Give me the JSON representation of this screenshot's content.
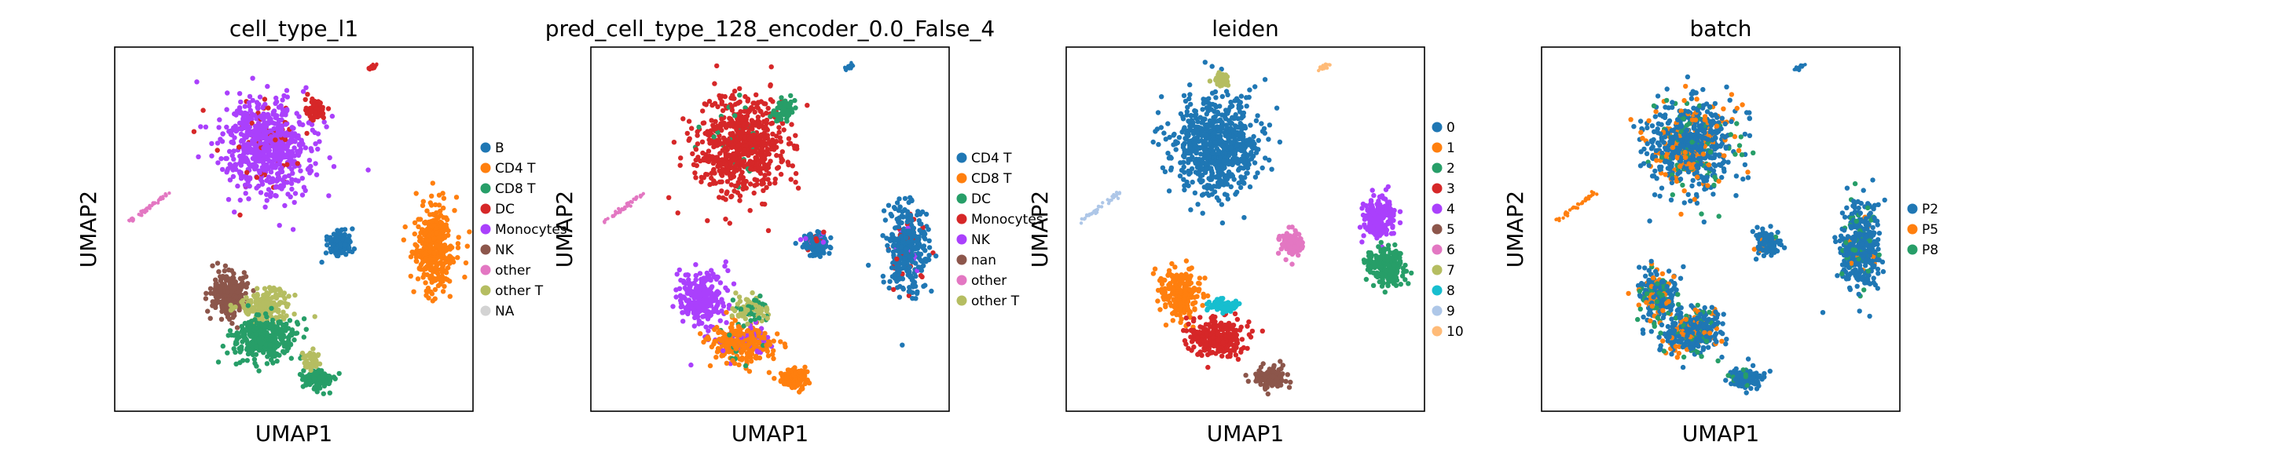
{
  "chart_data": [
    {
      "type": "scatter",
      "title": "cell_type_l1",
      "xlabel": "UMAP1",
      "ylabel": "UMAP2",
      "grid": false,
      "legend_position": "right",
      "legend": [
        {
          "label": "B",
          "color": "#1f77b4"
        },
        {
          "label": "CD4 T",
          "color": "#ff7f0e"
        },
        {
          "label": "CD8 T",
          "color": "#279e68"
        },
        {
          "label": "DC",
          "color": "#d62728"
        },
        {
          "label": "Monocytes",
          "color": "#aa40fc"
        },
        {
          "label": "NK",
          "color": "#8c564b"
        },
        {
          "label": "other",
          "color": "#e377c2"
        },
        {
          "label": "other T",
          "color": "#b5bd61"
        },
        {
          "label": "NA",
          "color": "#d3d3d3"
        }
      ],
      "clusters": [
        {
          "label": "Monocytes",
          "color": "#aa40fc",
          "x": 0.42,
          "y": 0.73,
          "sx": 0.11,
          "sy": 0.12,
          "n": 700,
          "mix": [
            [
              "#d62728",
              0.06
            ]
          ]
        },
        {
          "label": "DC",
          "color": "#d62728",
          "x": 0.56,
          "y": 0.83,
          "sx": 0.025,
          "sy": 0.025,
          "n": 60
        },
        {
          "label": "NK",
          "color": "#8c564b",
          "x": 0.32,
          "y": 0.32,
          "sx": 0.05,
          "sy": 0.06,
          "n": 220
        },
        {
          "label": "other T",
          "color": "#b5bd61",
          "x": 0.42,
          "y": 0.29,
          "sx": 0.07,
          "sy": 0.04,
          "n": 160
        },
        {
          "label": "CD8 T",
          "color": "#279e68",
          "x": 0.42,
          "y": 0.2,
          "sx": 0.08,
          "sy": 0.05,
          "n": 320
        },
        {
          "label": "CD8 T",
          "color": "#279e68",
          "x": 0.57,
          "y": 0.09,
          "sx": 0.04,
          "sy": 0.025,
          "n": 130
        },
        {
          "label": "other T",
          "color": "#b5bd61",
          "x": 0.55,
          "y": 0.14,
          "sx": 0.02,
          "sy": 0.02,
          "n": 40
        },
        {
          "label": "CD4 T",
          "color": "#ff7f0e",
          "x": 0.89,
          "y": 0.45,
          "sx": 0.05,
          "sy": 0.11,
          "n": 380
        },
        {
          "label": "B",
          "color": "#1f77b4",
          "x": 0.63,
          "y": 0.46,
          "sx": 0.03,
          "sy": 0.03,
          "n": 120
        }
      ],
      "streaks": [
        {
          "label": "other",
          "color": "#e377c2",
          "x1": 0.04,
          "y1": 0.52,
          "x2": 0.15,
          "y2": 0.6
        },
        {
          "label": "DC",
          "color": "#d62728",
          "x1": 0.71,
          "y1": 0.94,
          "x2": 0.73,
          "y2": 0.95
        }
      ]
    },
    {
      "type": "scatter",
      "title": "pred_cell_type_128_encoder_0.0_False_4",
      "xlabel": "UMAP1",
      "ylabel": "UMAP2",
      "grid": false,
      "legend_position": "right",
      "legend": [
        {
          "label": "CD4 T",
          "color": "#1f77b4"
        },
        {
          "label": "CD8 T",
          "color": "#ff7f0e"
        },
        {
          "label": "DC",
          "color": "#279e68"
        },
        {
          "label": "Monocytes",
          "color": "#d62728"
        },
        {
          "label": "NK",
          "color": "#aa40fc"
        },
        {
          "label": "nan",
          "color": "#8c564b"
        },
        {
          "label": "other",
          "color": "#e377c2"
        },
        {
          "label": "other T",
          "color": "#b5bd61"
        }
      ],
      "clusters": [
        {
          "label": "Monocytes",
          "color": "#d62728",
          "x": 0.42,
          "y": 0.73,
          "sx": 0.11,
          "sy": 0.12,
          "n": 700,
          "mix": [
            [
              "#279e68",
              0.04
            ]
          ]
        },
        {
          "label": "DC",
          "color": "#279e68",
          "x": 0.54,
          "y": 0.83,
          "sx": 0.025,
          "sy": 0.025,
          "n": 60
        },
        {
          "label": "NK",
          "color": "#aa40fc",
          "x": 0.31,
          "y": 0.31,
          "sx": 0.06,
          "sy": 0.07,
          "n": 260
        },
        {
          "label": "CD8 T",
          "color": "#ff7f0e",
          "x": 0.42,
          "y": 0.19,
          "sx": 0.08,
          "sy": 0.05,
          "n": 320,
          "mix": [
            [
              "#aa40fc",
              0.12
            ],
            [
              "#279e68",
              0.05
            ]
          ]
        },
        {
          "label": "CD8 T",
          "color": "#ff7f0e",
          "x": 0.57,
          "y": 0.09,
          "sx": 0.04,
          "sy": 0.025,
          "n": 130
        },
        {
          "label": "other T",
          "color": "#b5bd61",
          "x": 0.45,
          "y": 0.28,
          "sx": 0.05,
          "sy": 0.03,
          "n": 90,
          "mix": [
            [
              "#279e68",
              0.3
            ]
          ]
        },
        {
          "label": "CD4 T",
          "color": "#1f77b4",
          "x": 0.88,
          "y": 0.45,
          "sx": 0.05,
          "sy": 0.11,
          "n": 380,
          "mix": [
            [
              "#d62728",
              0.06
            ],
            [
              "#aa40fc",
              0.04
            ]
          ]
        },
        {
          "label": "CD4 T",
          "color": "#1f77b4",
          "x": 0.63,
          "y": 0.46,
          "sx": 0.03,
          "sy": 0.03,
          "n": 120,
          "mix": [
            [
              "#d62728",
              0.1
            ],
            [
              "#aa40fc",
              0.1
            ]
          ]
        }
      ],
      "streaks": [
        {
          "label": "other",
          "color": "#e377c2",
          "x1": 0.04,
          "y1": 0.52,
          "x2": 0.15,
          "y2": 0.6
        },
        {
          "label": "CD4 T",
          "color": "#1f77b4",
          "x1": 0.71,
          "y1": 0.94,
          "x2": 0.73,
          "y2": 0.95
        }
      ]
    },
    {
      "type": "scatter",
      "title": "leiden",
      "xlabel": "UMAP1",
      "ylabel": "UMAP2",
      "grid": false,
      "legend_position": "right",
      "legend": [
        {
          "label": "0",
          "color": "#1f77b4"
        },
        {
          "label": "1",
          "color": "#ff7f0e"
        },
        {
          "label": "2",
          "color": "#279e68"
        },
        {
          "label": "3",
          "color": "#d62728"
        },
        {
          "label": "4",
          "color": "#aa40fc"
        },
        {
          "label": "5",
          "color": "#8c564b"
        },
        {
          "label": "6",
          "color": "#e377c2"
        },
        {
          "label": "7",
          "color": "#b5bd61"
        },
        {
          "label": "8",
          "color": "#17becf"
        },
        {
          "label": "9",
          "color": "#aec7e8"
        },
        {
          "label": "10",
          "color": "#ffbb78"
        }
      ],
      "clusters": [
        {
          "label": "0",
          "color": "#1f77b4",
          "x": 0.42,
          "y": 0.73,
          "sx": 0.11,
          "sy": 0.12,
          "n": 700
        },
        {
          "label": "7",
          "color": "#b5bd61",
          "x": 0.43,
          "y": 0.91,
          "sx": 0.02,
          "sy": 0.015,
          "n": 50
        },
        {
          "label": "1",
          "color": "#ff7f0e",
          "x": 0.32,
          "y": 0.32,
          "sx": 0.05,
          "sy": 0.06,
          "n": 240
        },
        {
          "label": "3",
          "color": "#d62728",
          "x": 0.42,
          "y": 0.2,
          "sx": 0.07,
          "sy": 0.05,
          "n": 280
        },
        {
          "label": "8",
          "color": "#17becf",
          "x": 0.44,
          "y": 0.29,
          "sx": 0.04,
          "sy": 0.015,
          "n": 70
        },
        {
          "label": "5",
          "color": "#8c564b",
          "x": 0.57,
          "y": 0.09,
          "sx": 0.04,
          "sy": 0.03,
          "n": 130
        },
        {
          "label": "6",
          "color": "#e377c2",
          "x": 0.63,
          "y": 0.46,
          "sx": 0.03,
          "sy": 0.03,
          "n": 120
        },
        {
          "label": "4",
          "color": "#aa40fc",
          "x": 0.87,
          "y": 0.53,
          "sx": 0.04,
          "sy": 0.05,
          "n": 200
        },
        {
          "label": "2",
          "color": "#279e68",
          "x": 0.89,
          "y": 0.4,
          "sx": 0.045,
          "sy": 0.05,
          "n": 220
        }
      ],
      "streaks": [
        {
          "label": "9",
          "color": "#aec7e8",
          "x1": 0.04,
          "y1": 0.52,
          "x2": 0.15,
          "y2": 0.6
        },
        {
          "label": "10",
          "color": "#ffbb78",
          "x1": 0.71,
          "y1": 0.94,
          "x2": 0.73,
          "y2": 0.95
        }
      ]
    },
    {
      "type": "scatter",
      "title": "batch",
      "xlabel": "UMAP1",
      "ylabel": "UMAP2",
      "grid": false,
      "legend_position": "right",
      "legend": [
        {
          "label": "P2",
          "color": "#1f77b4"
        },
        {
          "label": "P5",
          "color": "#ff7f0e"
        },
        {
          "label": "P8",
          "color": "#279e68"
        }
      ],
      "clusters": [
        {
          "label": "P2",
          "color": "#1f77b4",
          "x": 0.42,
          "y": 0.73,
          "sx": 0.11,
          "sy": 0.12,
          "n": 700,
          "mix": [
            [
              "#ff7f0e",
              0.18
            ],
            [
              "#279e68",
              0.12
            ]
          ]
        },
        {
          "label": "P2",
          "color": "#1f77b4",
          "x": 0.32,
          "y": 0.32,
          "sx": 0.05,
          "sy": 0.06,
          "n": 220,
          "mix": [
            [
              "#ff7f0e",
              0.2
            ],
            [
              "#279e68",
              0.15
            ]
          ]
        },
        {
          "label": "P2",
          "color": "#1f77b4",
          "x": 0.42,
          "y": 0.22,
          "sx": 0.08,
          "sy": 0.06,
          "n": 360,
          "mix": [
            [
              "#ff7f0e",
              0.2
            ],
            [
              "#279e68",
              0.15
            ]
          ]
        },
        {
          "label": "P2",
          "color": "#1f77b4",
          "x": 0.57,
          "y": 0.09,
          "sx": 0.04,
          "sy": 0.025,
          "n": 130,
          "mix": [
            [
              "#279e68",
              0.05
            ]
          ]
        },
        {
          "label": "P2",
          "color": "#1f77b4",
          "x": 0.89,
          "y": 0.45,
          "sx": 0.05,
          "sy": 0.11,
          "n": 380,
          "mix": [
            [
              "#279e68",
              0.12
            ],
            [
              "#ff7f0e",
              0.05
            ]
          ]
        },
        {
          "label": "P2",
          "color": "#1f77b4",
          "x": 0.63,
          "y": 0.46,
          "sx": 0.03,
          "sy": 0.03,
          "n": 120,
          "mix": [
            [
              "#279e68",
              0.1
            ],
            [
              "#ff7f0e",
              0.05
            ]
          ]
        }
      ],
      "streaks": [
        {
          "label": "P5",
          "color": "#ff7f0e",
          "x1": 0.04,
          "y1": 0.52,
          "x2": 0.15,
          "y2": 0.6
        },
        {
          "label": "P2",
          "color": "#1f77b4",
          "x1": 0.71,
          "y1": 0.94,
          "x2": 0.73,
          "y2": 0.95
        }
      ]
    }
  ]
}
